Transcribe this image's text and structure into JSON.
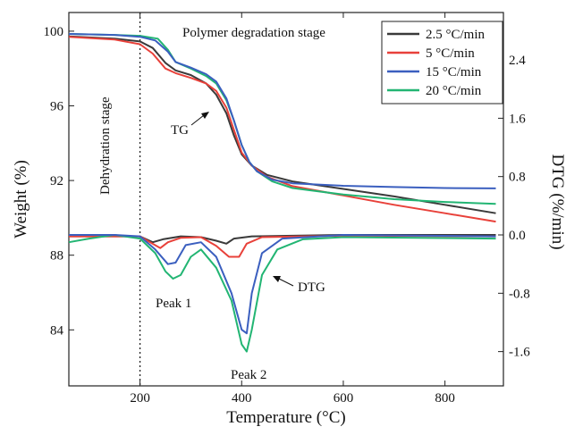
{
  "chart_data": {
    "type": "line",
    "xlabel": "Temperature (°C)",
    "ylabel_left": "Weight (%)",
    "ylabel_right": "DTG (%/min)",
    "xlim": [
      60,
      915
    ],
    "ylim_left": [
      81,
      101
    ],
    "ylim_right": [
      -2.07,
      3.05
    ],
    "xticks": [
      200,
      400,
      600,
      800
    ],
    "yticks_left": [
      84,
      88,
      92,
      96,
      100
    ],
    "yticks_right": [
      -1.6,
      -0.8,
      0.0,
      0.8,
      1.6,
      2.4
    ],
    "ytick_labels_left": [
      "84",
      "88",
      "92",
      "96",
      "100"
    ],
    "ytick_labels_right": [
      "-1.6",
      "-0.8",
      "0.0",
      "0.8",
      "1.6",
      "2.4"
    ],
    "xtick_labels": [
      "200",
      "400",
      "600",
      "800"
    ],
    "divider_x": 200,
    "legend": {
      "placement": "top-right"
    },
    "annotations": {
      "stage1": "Polymer degradation stage",
      "stage0": "Dehydration stage",
      "tg": "TG",
      "dtg": "DTG",
      "peak1": "Peak 1",
      "peak2": "Peak 2"
    },
    "series": [
      {
        "name": "2.5 °C/min",
        "color": "#3a3a3a",
        "tg": [
          [
            60,
            99.72
          ],
          [
            150,
            99.6
          ],
          [
            200,
            99.45
          ],
          [
            225,
            99.1
          ],
          [
            250,
            98.3
          ],
          [
            270,
            97.9
          ],
          [
            300,
            97.65
          ],
          [
            330,
            97.2
          ],
          [
            350,
            96.6
          ],
          [
            370,
            95.6
          ],
          [
            385,
            94.4
          ],
          [
            400,
            93.4
          ],
          [
            420,
            92.8
          ],
          [
            450,
            92.3
          ],
          [
            500,
            91.95
          ],
          [
            600,
            91.55
          ],
          [
            700,
            91.15
          ],
          [
            800,
            90.7
          ],
          [
            900,
            90.25
          ]
        ],
        "dtg": [
          [
            60,
            -0.02
          ],
          [
            150,
            -0.02
          ],
          [
            200,
            -0.02
          ],
          [
            225,
            -0.1
          ],
          [
            245,
            -0.06
          ],
          [
            280,
            -0.02
          ],
          [
            320,
            -0.03
          ],
          [
            350,
            -0.08
          ],
          [
            370,
            -0.12
          ],
          [
            385,
            -0.05
          ],
          [
            420,
            -0.02
          ],
          [
            600,
            0.0
          ],
          [
            900,
            0.0
          ]
        ]
      },
      {
        "name": "5 °C/min",
        "color": "#e8413a",
        "tg": [
          [
            60,
            99.7
          ],
          [
            150,
            99.55
          ],
          [
            200,
            99.3
          ],
          [
            225,
            98.8
          ],
          [
            250,
            98.0
          ],
          [
            270,
            97.75
          ],
          [
            300,
            97.5
          ],
          [
            330,
            97.2
          ],
          [
            350,
            96.8
          ],
          [
            370,
            95.9
          ],
          [
            385,
            94.7
          ],
          [
            400,
            93.5
          ],
          [
            420,
            92.8
          ],
          [
            450,
            92.2
          ],
          [
            500,
            91.7
          ],
          [
            600,
            91.2
          ],
          [
            700,
            90.7
          ],
          [
            800,
            90.25
          ],
          [
            900,
            89.8
          ]
        ],
        "dtg": [
          [
            60,
            -0.02
          ],
          [
            150,
            -0.02
          ],
          [
            200,
            -0.02
          ],
          [
            220,
            -0.1
          ],
          [
            240,
            -0.18
          ],
          [
            255,
            -0.1
          ],
          [
            280,
            -0.04
          ],
          [
            320,
            -0.03
          ],
          [
            350,
            -0.15
          ],
          [
            375,
            -0.3
          ],
          [
            395,
            -0.3
          ],
          [
            410,
            -0.12
          ],
          [
            440,
            -0.03
          ],
          [
            600,
            -0.01
          ],
          [
            900,
            -0.02
          ]
        ]
      },
      {
        "name": "15 °C/min",
        "color": "#3b5fbf",
        "tg": [
          [
            60,
            99.85
          ],
          [
            150,
            99.8
          ],
          [
            200,
            99.7
          ],
          [
            230,
            99.5
          ],
          [
            255,
            98.9
          ],
          [
            270,
            98.35
          ],
          [
            300,
            98.05
          ],
          [
            330,
            97.7
          ],
          [
            350,
            97.3
          ],
          [
            370,
            96.4
          ],
          [
            385,
            95.2
          ],
          [
            400,
            93.9
          ],
          [
            415,
            93.0
          ],
          [
            430,
            92.5
          ],
          [
            460,
            92.05
          ],
          [
            500,
            91.85
          ],
          [
            600,
            91.72
          ],
          [
            700,
            91.65
          ],
          [
            800,
            91.6
          ],
          [
            900,
            91.58
          ]
        ],
        "dtg": [
          [
            60,
            0.0
          ],
          [
            150,
            0.0
          ],
          [
            200,
            -0.02
          ],
          [
            230,
            -0.2
          ],
          [
            255,
            -0.4
          ],
          [
            270,
            -0.38
          ],
          [
            290,
            -0.14
          ],
          [
            320,
            -0.1
          ],
          [
            350,
            -0.3
          ],
          [
            380,
            -0.8
          ],
          [
            400,
            -1.3
          ],
          [
            410,
            -1.35
          ],
          [
            420,
            -0.8
          ],
          [
            440,
            -0.25
          ],
          [
            480,
            -0.05
          ],
          [
            600,
            0.0
          ],
          [
            900,
            -0.02
          ]
        ]
      },
      {
        "name": "20 °C/min",
        "color": "#22b573",
        "tg": [
          [
            60,
            99.85
          ],
          [
            150,
            99.8
          ],
          [
            200,
            99.75
          ],
          [
            235,
            99.6
          ],
          [
            255,
            99.0
          ],
          [
            270,
            98.35
          ],
          [
            300,
            98.0
          ],
          [
            330,
            97.6
          ],
          [
            350,
            97.2
          ],
          [
            370,
            96.3
          ],
          [
            385,
            95.2
          ],
          [
            400,
            93.9
          ],
          [
            415,
            93.0
          ],
          [
            430,
            92.5
          ],
          [
            460,
            91.95
          ],
          [
            500,
            91.6
          ],
          [
            600,
            91.25
          ],
          [
            700,
            91.0
          ],
          [
            800,
            90.85
          ],
          [
            900,
            90.75
          ]
        ],
        "dtg": [
          [
            60,
            -0.1
          ],
          [
            100,
            -0.05
          ],
          [
            150,
            0.0
          ],
          [
            200,
            -0.05
          ],
          [
            230,
            -0.25
          ],
          [
            250,
            -0.5
          ],
          [
            265,
            -0.6
          ],
          [
            280,
            -0.55
          ],
          [
            300,
            -0.3
          ],
          [
            320,
            -0.2
          ],
          [
            350,
            -0.45
          ],
          [
            380,
            -0.9
          ],
          [
            400,
            -1.5
          ],
          [
            410,
            -1.6
          ],
          [
            420,
            -1.3
          ],
          [
            440,
            -0.55
          ],
          [
            470,
            -0.2
          ],
          [
            520,
            -0.06
          ],
          [
            600,
            -0.03
          ],
          [
            900,
            -0.05
          ]
        ]
      }
    ]
  }
}
